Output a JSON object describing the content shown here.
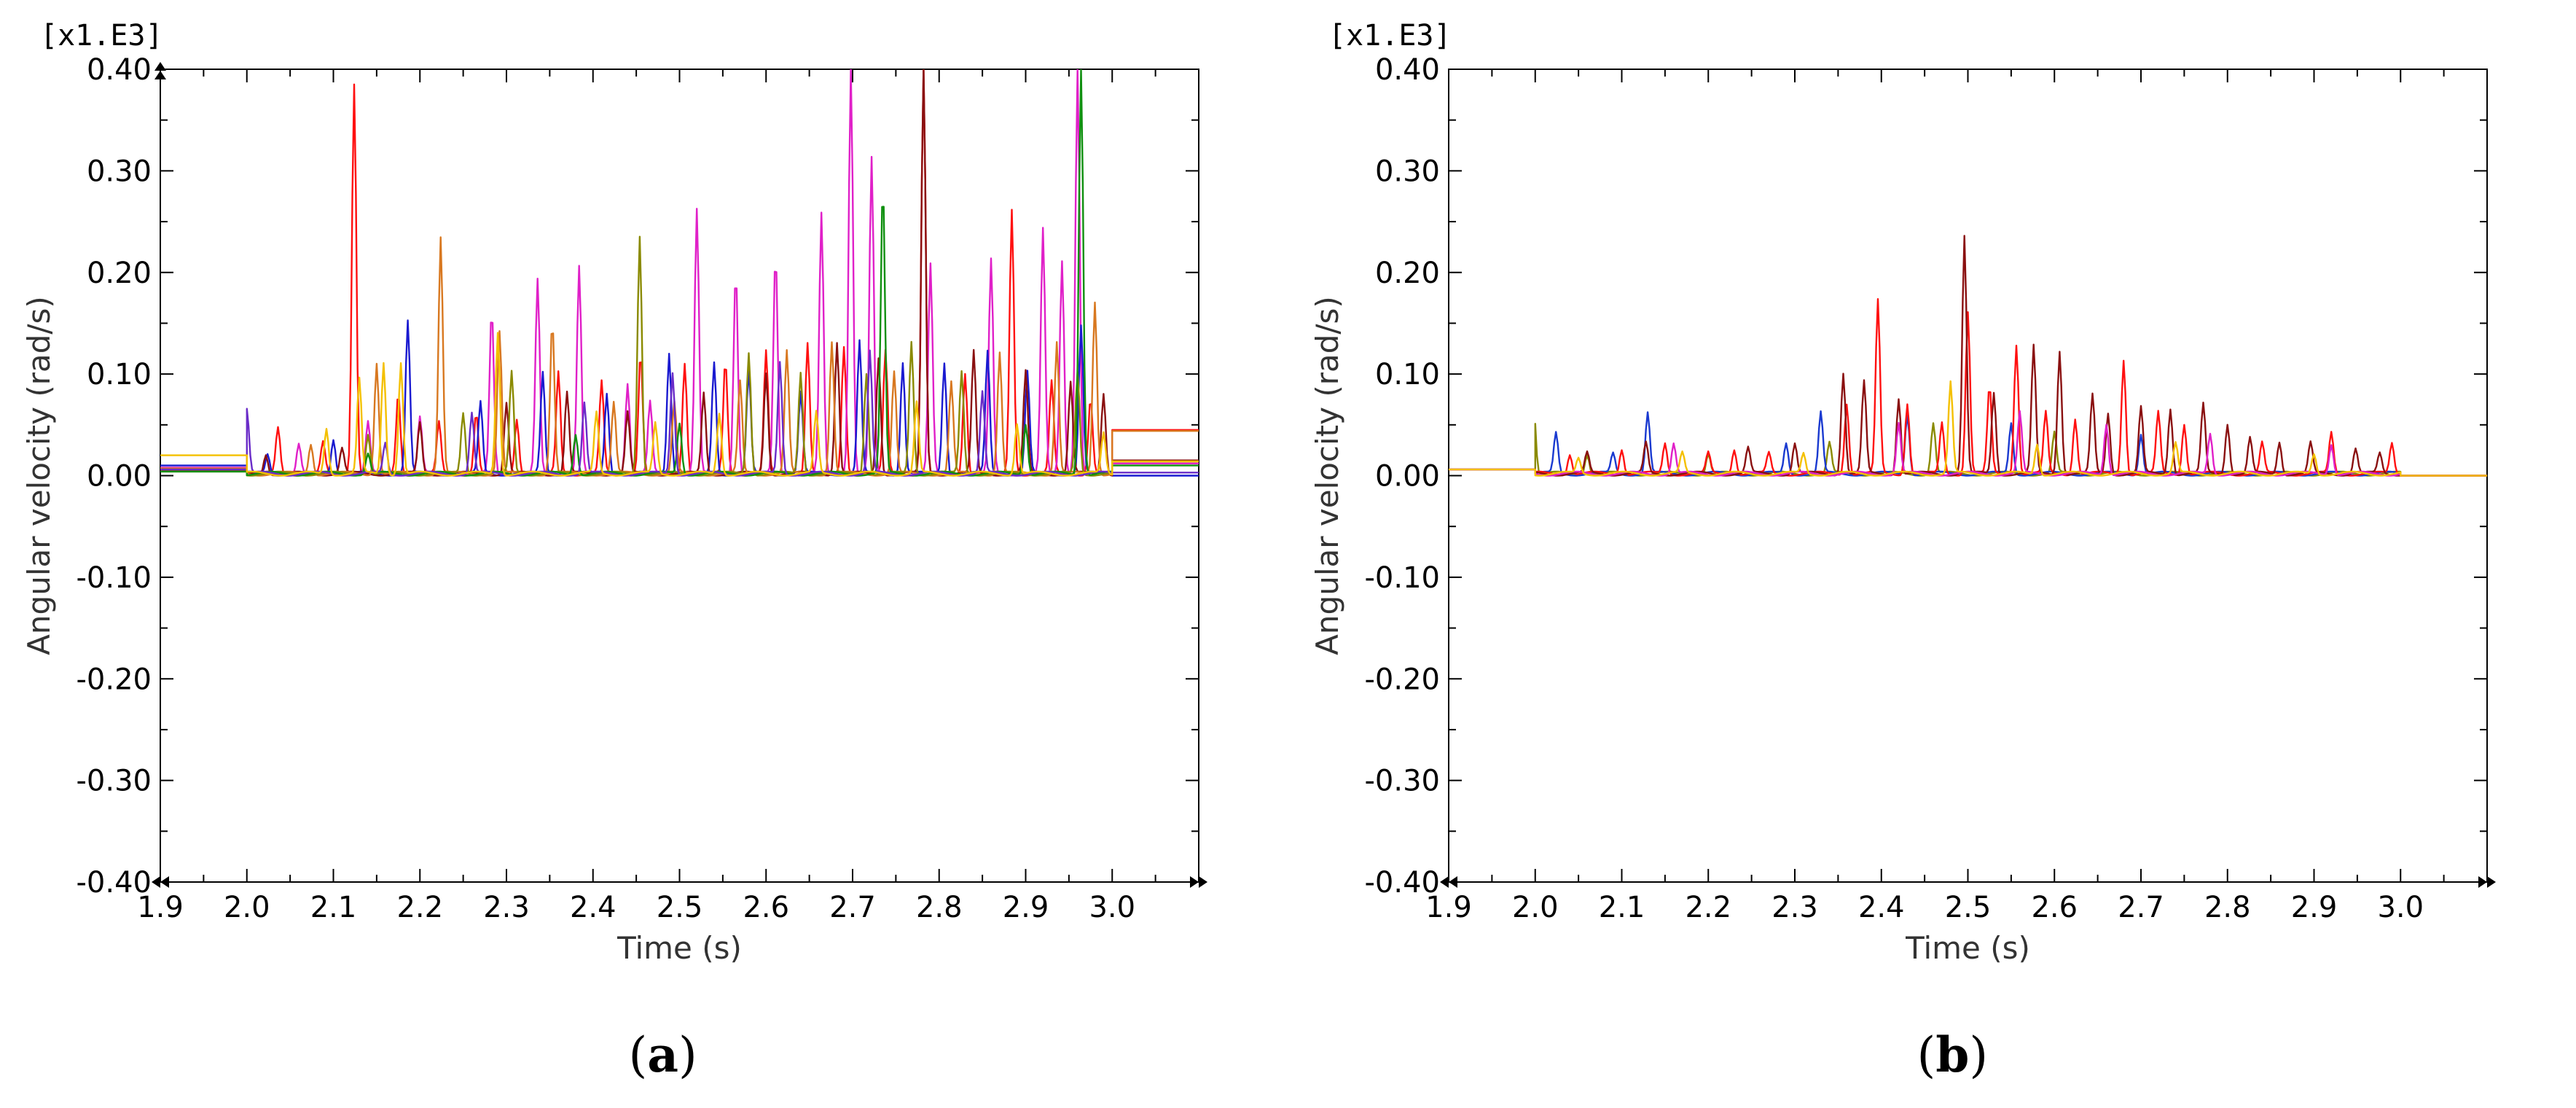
{
  "chart_data": [
    {
      "type": "line",
      "panel_label": "(a)",
      "panel_letter": "a",
      "scale_note": "[x1.E3]",
      "xlabel": "Time (s)",
      "ylabel": "Angular velocity (rad/s)",
      "xlim": [
        1.9,
        3.1
      ],
      "ylim": [
        -0.4,
        0.4
      ],
      "x_ticks": [
        1.9,
        2.0,
        2.1,
        2.2,
        2.3,
        2.4,
        2.5,
        2.6,
        2.7,
        2.8,
        2.9,
        3.0
      ],
      "x_tick_labels": [
        "1.9",
        "2.0",
        "2.1",
        "2.2",
        "2.3",
        "2.4",
        "2.5",
        "2.6",
        "2.7",
        "2.8",
        "2.9",
        "3.0"
      ],
      "y_ticks": [
        0.4,
        0.3,
        0.2,
        0.1,
        0.0,
        -0.1,
        -0.2,
        -0.3,
        -0.4
      ],
      "y_tick_labels": [
        "0.40",
        "0.30",
        "0.20",
        "0.10",
        "0.00",
        "-0.10",
        "-0.20",
        "-0.30",
        "-0.40"
      ],
      "grid": false,
      "series": [
        {
          "color": "#ff1010",
          "pre_level": 0.006,
          "post_level": 0.045,
          "spikes": [
            [
              2.036,
              0.045
            ],
            [
              2.088,
              0.03
            ],
            [
              2.124,
              0.385
            ],
            [
              2.175,
              0.08
            ],
            [
              2.222,
              0.05
            ],
            [
              2.265,
              0.06
            ],
            [
              2.312,
              0.055
            ],
            [
              2.36,
              0.1
            ],
            [
              2.41,
              0.09
            ],
            [
              2.455,
              0.12
            ],
            [
              2.506,
              0.11
            ],
            [
              2.553,
              0.11
            ],
            [
              2.6,
              0.12
            ],
            [
              2.648,
              0.13
            ],
            [
              2.69,
              0.125
            ],
            [
              2.738,
              0.12
            ],
            [
              2.782,
              0.4
            ],
            [
              2.83,
              0.1
            ],
            [
              2.884,
              0.26
            ],
            [
              2.93,
              0.09
            ],
            [
              2.975,
              0.075
            ]
          ]
        },
        {
          "color": "#e020c8",
          "pre_level": 0.008,
          "post_level": 0.012,
          "spikes": [
            [
              2.06,
              0.03
            ],
            [
              2.14,
              0.05
            ],
            [
              2.2,
              0.055
            ],
            [
              2.283,
              0.16
            ],
            [
              2.336,
              0.19
            ],
            [
              2.384,
              0.205
            ],
            [
              2.44,
              0.09
            ],
            [
              2.466,
              0.07
            ],
            [
              2.52,
              0.26
            ],
            [
              2.565,
              0.2
            ],
            [
              2.611,
              0.215
            ],
            [
              2.664,
              0.255
            ],
            [
              2.698,
              0.4
            ],
            [
              2.722,
              0.31
            ],
            [
              2.79,
              0.205
            ],
            [
              2.86,
              0.21
            ],
            [
              2.92,
              0.24
            ],
            [
              2.942,
              0.21
            ],
            [
              2.96,
              0.4
            ]
          ]
        },
        {
          "color": "#1a1ad0",
          "pre_level": 0.01,
          "post_level": 0.0,
          "spikes": [
            [
              2.024,
              0.02
            ],
            [
              2.1,
              0.035
            ],
            [
              2.186,
              0.15
            ],
            [
              2.27,
              0.07
            ],
            [
              2.342,
              0.1
            ],
            [
              2.416,
              0.08
            ],
            [
              2.488,
              0.12
            ],
            [
              2.54,
              0.11
            ],
            [
              2.58,
              0.1
            ],
            [
              2.64,
              0.08
            ],
            [
              2.708,
              0.13
            ],
            [
              2.758,
              0.11
            ],
            [
              2.806,
              0.11
            ],
            [
              2.856,
              0.12
            ],
            [
              2.902,
              0.1
            ],
            [
              2.964,
              0.145
            ]
          ]
        },
        {
          "color": "#8a1010",
          "pre_level": 0.005,
          "post_level": 0.015,
          "spikes": [
            [
              2.022,
              0.02
            ],
            [
              2.11,
              0.025
            ],
            [
              2.2,
              0.05
            ],
            [
              2.3,
              0.07
            ],
            [
              2.37,
              0.08
            ],
            [
              2.44,
              0.06
            ],
            [
              2.528,
              0.08
            ],
            [
              2.6,
              0.1
            ],
            [
              2.682,
              0.13
            ],
            [
              2.73,
              0.115
            ],
            [
              2.782,
              0.4
            ],
            [
              2.84,
              0.12
            ],
            [
              2.9,
              0.1
            ],
            [
              2.952,
              0.09
            ],
            [
              2.99,
              0.08
            ]
          ]
        },
        {
          "color": "#d87820",
          "pre_level": 0.007,
          "post_level": 0.044,
          "spikes": [
            [
              2.074,
              0.03
            ],
            [
              2.15,
              0.11
            ],
            [
              2.224,
              0.233
            ],
            [
              2.292,
              0.14
            ],
            [
              2.353,
              0.15
            ],
            [
              2.424,
              0.07
            ],
            [
              2.494,
              0.07
            ],
            [
              2.57,
              0.09
            ],
            [
              2.624,
              0.12
            ],
            [
              2.676,
              0.13
            ],
            [
              2.748,
              0.1
            ],
            [
              2.814,
              0.09
            ],
            [
              2.87,
              0.12
            ],
            [
              2.936,
              0.13
            ],
            [
              2.98,
              0.17
            ]
          ]
        },
        {
          "color": "#8a8a00",
          "pre_level": 0.004,
          "post_level": 0.014,
          "spikes": [
            [
              2.14,
              0.04
            ],
            [
              2.25,
              0.06
            ],
            [
              2.306,
              0.1
            ],
            [
              2.454,
              0.235
            ],
            [
              2.58,
              0.12
            ],
            [
              2.64,
              0.1
            ],
            [
              2.716,
              0.1
            ],
            [
              2.768,
              0.13
            ],
            [
              2.826,
              0.1
            ],
            [
              2.96,
              0.1
            ]
          ]
        },
        {
          "color": "#109010",
          "pre_level": 0.004,
          "post_level": 0.01,
          "spikes": [
            [
              2.14,
              0.02
            ],
            [
              2.38,
              0.04
            ],
            [
              2.5,
              0.05
            ],
            [
              2.735,
              0.283
            ],
            [
              2.964,
              0.4
            ],
            [
              2.9,
              0.05
            ]
          ]
        },
        {
          "color": "#6a2cc8",
          "pre_level": 0.006,
          "post_level": 0.003,
          "spikes": [
            [
              2.0,
              0.064
            ],
            [
              2.16,
              0.03
            ],
            [
              2.26,
              0.06
            ],
            [
              2.39,
              0.07
            ],
            [
              2.492,
              0.1
            ],
            [
              2.616,
              0.11
            ],
            [
              2.72,
              0.12
            ],
            [
              2.85,
              0.08
            ]
          ]
        },
        {
          "color": "#f4c000",
          "pre_level": 0.02,
          "post_level": 0.014,
          "spikes": [
            [
              2.092,
              0.045
            ],
            [
              2.13,
              0.093
            ],
            [
              2.158,
              0.11
            ],
            [
              2.178,
              0.11
            ],
            [
              2.29,
              0.14
            ],
            [
              2.404,
              0.06
            ],
            [
              2.472,
              0.05
            ],
            [
              2.546,
              0.06
            ],
            [
              2.658,
              0.06
            ],
            [
              2.774,
              0.07
            ],
            [
              2.89,
              0.05
            ],
            [
              2.99,
              0.04
            ]
          ]
        }
      ]
    },
    {
      "type": "line",
      "panel_label": "(b)",
      "panel_letter": "b",
      "scale_note": "[x1.E3]",
      "xlabel": "Time (s)",
      "ylabel": "Angular velocity (rad/s)",
      "xlim": [
        1.9,
        3.1
      ],
      "ylim": [
        -0.4,
        0.4
      ],
      "x_ticks": [
        1.9,
        2.0,
        2.1,
        2.2,
        2.3,
        2.4,
        2.5,
        2.6,
        2.7,
        2.8,
        2.9,
        3.0
      ],
      "x_tick_labels": [
        "1.9",
        "2.0",
        "2.1",
        "2.2",
        "2.3",
        "2.4",
        "2.5",
        "2.6",
        "2.7",
        "2.8",
        "2.9",
        "3.0"
      ],
      "y_ticks": [
        0.4,
        0.3,
        0.2,
        0.1,
        0.0,
        -0.1,
        -0.2,
        -0.3,
        -0.4
      ],
      "y_tick_labels": [
        "0.40",
        "0.30",
        "0.20",
        "0.10",
        "0.00",
        "-0.10",
        "-0.20",
        "-0.30",
        "-0.40"
      ],
      "grid": false,
      "series": [
        {
          "color": "#8a8a00",
          "pre_level": 0.006,
          "post_level": 0.0,
          "spikes": [
            [
              1.998,
              0.07
            ],
            [
              2.06,
              0.02
            ],
            [
              2.2,
              0.02
            ],
            [
              2.34,
              0.03
            ],
            [
              2.46,
              0.05
            ],
            [
              2.6,
              0.04
            ]
          ]
        },
        {
          "color": "#1a3ad0",
          "pre_level": 0.006,
          "post_level": 0.0,
          "spikes": [
            [
              2.024,
              0.04
            ],
            [
              2.09,
              0.02
            ],
            [
              2.13,
              0.06
            ],
            [
              2.29,
              0.03
            ],
            [
              2.33,
              0.06
            ],
            [
              2.43,
              0.06
            ],
            [
              2.55,
              0.05
            ],
            [
              2.7,
              0.04
            ]
          ]
        },
        {
          "color": "#ff1010",
          "pre_level": 0.006,
          "post_level": 0.0,
          "spikes": [
            [
              2.04,
              0.02
            ],
            [
              2.1,
              0.025
            ],
            [
              2.15,
              0.03
            ],
            [
              2.2,
              0.02
            ],
            [
              2.23,
              0.025
            ],
            [
              2.27,
              0.02
            ],
            [
              2.36,
              0.07
            ],
            [
              2.396,
              0.17
            ],
            [
              2.43,
              0.07
            ],
            [
              2.47,
              0.05
            ],
            [
              2.5,
              0.16
            ],
            [
              2.525,
              0.085
            ],
            [
              2.556,
              0.128
            ],
            [
              2.59,
              0.06
            ],
            [
              2.624,
              0.055
            ],
            [
              2.68,
              0.113
            ],
            [
              2.72,
              0.06
            ],
            [
              2.75,
              0.05
            ],
            [
              2.84,
              0.03
            ],
            [
              2.92,
              0.04
            ],
            [
              2.99,
              0.03
            ]
          ]
        },
        {
          "color": "#8a1010",
          "pre_level": 0.006,
          "post_level": 0.0,
          "spikes": [
            [
              2.06,
              0.02
            ],
            [
              2.128,
              0.03
            ],
            [
              2.246,
              0.025
            ],
            [
              2.3,
              0.03
            ],
            [
              2.356,
              0.1
            ],
            [
              2.38,
              0.09
            ],
            [
              2.42,
              0.075
            ],
            [
              2.496,
              0.234
            ],
            [
              2.53,
              0.08
            ],
            [
              2.576,
              0.125
            ],
            [
              2.606,
              0.122
            ],
            [
              2.644,
              0.077
            ],
            [
              2.662,
              0.06
            ],
            [
              2.7,
              0.065
            ],
            [
              2.734,
              0.065
            ],
            [
              2.772,
              0.068
            ],
            [
              2.8,
              0.05
            ],
            [
              2.826,
              0.035
            ],
            [
              2.86,
              0.032
            ],
            [
              2.896,
              0.03
            ],
            [
              2.948,
              0.025
            ],
            [
              2.976,
              0.02
            ]
          ]
        },
        {
          "color": "#e020c8",
          "pre_level": 0.006,
          "post_level": 0.0,
          "spikes": [
            [
              2.16,
              0.03
            ],
            [
              2.42,
              0.05
            ],
            [
              2.56,
              0.06
            ],
            [
              2.66,
              0.05
            ],
            [
              2.78,
              0.04
            ],
            [
              2.92,
              0.03
            ]
          ]
        },
        {
          "color": "#f4c000",
          "pre_level": 0.006,
          "post_level": 0.0,
          "spikes": [
            [
              2.05,
              0.015
            ],
            [
              2.17,
              0.02
            ],
            [
              2.31,
              0.02
            ],
            [
              2.48,
              0.09
            ],
            [
              2.58,
              0.03
            ],
            [
              2.74,
              0.03
            ],
            [
              2.9,
              0.02
            ]
          ]
        }
      ]
    }
  ]
}
